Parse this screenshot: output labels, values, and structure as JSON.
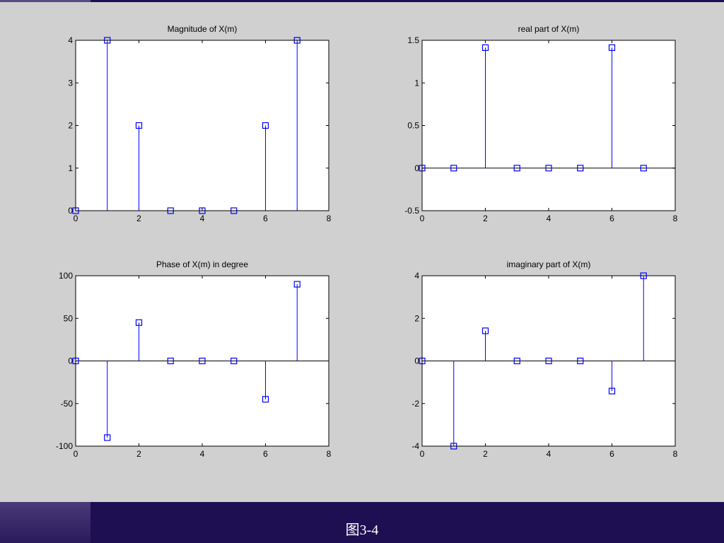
{
  "caption": "图3-4",
  "colors": {
    "background": "#d0d0d0",
    "plot_bg": "#ffffff",
    "stem": "#0000ff",
    "footer": "#1e0f52"
  },
  "chart_data": [
    {
      "type": "stem",
      "title": "Magnitude of X(m)",
      "x": [
        0,
        1,
        2,
        3,
        4,
        5,
        6,
        7
      ],
      "y": [
        0,
        4,
        2,
        0,
        0,
        0,
        2,
        4
      ],
      "xlim": [
        0,
        8
      ],
      "ylim": [
        0,
        4
      ],
      "xticks": [
        0,
        2,
        4,
        6,
        8
      ],
      "yticks": [
        0,
        1,
        2,
        3,
        4
      ],
      "xtick_labels": [
        "0",
        "2",
        "4",
        "6",
        "8"
      ],
      "ytick_labels": [
        "0",
        "1",
        "2",
        "3",
        "4"
      ],
      "marker": "square",
      "zero_line": false
    },
    {
      "type": "stem",
      "title": "real part of X(m)",
      "x": [
        0,
        1,
        2,
        3,
        4,
        5,
        6,
        7
      ],
      "y": [
        0,
        0,
        1.414,
        0,
        0,
        0,
        1.414,
        0
      ],
      "xlim": [
        0,
        8
      ],
      "ylim": [
        -0.5,
        1.5
      ],
      "xticks": [
        0,
        2,
        4,
        6,
        8
      ],
      "yticks": [
        -0.5,
        0,
        0.5,
        1,
        1.5
      ],
      "xtick_labels": [
        "0",
        "2",
        "4",
        "6",
        "8"
      ],
      "ytick_labels": [
        "-0.5",
        "0",
        "0.5",
        "1",
        "1.5"
      ],
      "marker": "square",
      "zero_line": true
    },
    {
      "type": "stem",
      "title": "Phase of X(m) in degree",
      "x": [
        0,
        1,
        2,
        3,
        4,
        5,
        6,
        7
      ],
      "y": [
        0,
        -90,
        45,
        0,
        0,
        0,
        -45,
        90
      ],
      "xlim": [
        0,
        8
      ],
      "ylim": [
        -100,
        100
      ],
      "xticks": [
        0,
        2,
        4,
        6,
        8
      ],
      "yticks": [
        -100,
        -50,
        0,
        50,
        100
      ],
      "xtick_labels": [
        "0",
        "2",
        "4",
        "6",
        "8"
      ],
      "ytick_labels": [
        "-100",
        "-50",
        "0",
        "50",
        "100"
      ],
      "marker": "square",
      "zero_line": true
    },
    {
      "type": "stem",
      "title": "imaginary part of X(m)",
      "x": [
        0,
        1,
        2,
        3,
        4,
        5,
        6,
        7
      ],
      "y": [
        0,
        -4,
        1.414,
        0,
        0,
        0,
        -1.414,
        4
      ],
      "xlim": [
        0,
        8
      ],
      "ylim": [
        -4,
        4
      ],
      "xticks": [
        0,
        2,
        4,
        6,
        8
      ],
      "yticks": [
        -4,
        -2,
        0,
        2,
        4
      ],
      "xtick_labels": [
        "0",
        "2",
        "4",
        "6",
        "8"
      ],
      "ytick_labels": [
        "-4",
        "-2",
        "0",
        "2",
        "4"
      ],
      "marker": "square",
      "zero_line": true
    }
  ]
}
